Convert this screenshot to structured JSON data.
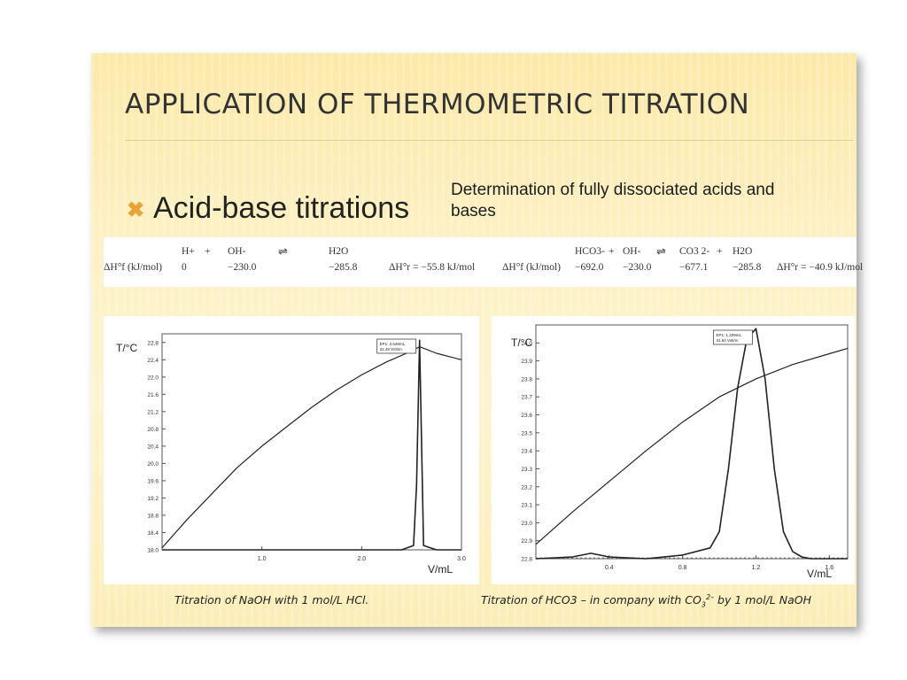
{
  "slide": {
    "title": "APPLICATION OF THERMOMETRIC TITRATION",
    "bullet": "Acid-base titrations",
    "note": "Determination of fully dissociated acids and bases",
    "colors": {
      "bullet_accent": "#e8a33a",
      "background": "#fdf0c2"
    }
  },
  "equations": {
    "eq1": {
      "row_label": "ΔH°f (kJ/mol)",
      "species": [
        "H+",
        "+",
        "OH-",
        "H2O"
      ],
      "values": [
        "0",
        "−230.0",
        "−285.8"
      ],
      "delta": "ΔH°r = −55.8 kJ/mol"
    },
    "eq2": {
      "row_label": "ΔH°f (kJ/mol)",
      "species": [
        "HCO3-",
        "+",
        "OH-",
        "CO3 2-",
        "+",
        "H2O"
      ],
      "values": [
        "−692.0",
        "−230.0",
        "−677.1",
        "−285.8"
      ],
      "delta": "ΔH°r = −40.9 kJ/mol"
    }
  },
  "captions": {
    "left": "Titration of NaOH with 1 mol/L HCl.",
    "right": {
      "part1": "Titration of HCO3 – in company with CO",
      "sub": "3",
      "sup": "2–",
      "part2": " by 1 mol/L NaOH"
    }
  },
  "chart_data": [
    {
      "type": "line",
      "title": "",
      "xlabel": "V/mL",
      "ylabel": "T/°C",
      "xlim": [
        0,
        3.0
      ],
      "ylim": [
        18.0,
        23.0
      ],
      "x_ticks": [
        "1.0",
        "2.0",
        "3.0"
      ],
      "y_ticks": [
        "18.0",
        "18.4",
        "18.8",
        "19.2",
        "19.6",
        "20.0",
        "20.4",
        "20.8",
        "21.2",
        "21.6",
        "22.0",
        "22.4",
        "22.8"
      ],
      "y_tick_values": [
        18.0,
        18.4,
        18.8,
        19.2,
        19.6,
        20.0,
        20.4,
        20.8,
        21.2,
        21.6,
        22.0,
        22.4,
        22.8
      ],
      "x_tick_values": [
        1.0,
        2.0,
        3.0
      ],
      "annotation": [
        "EP1: 2.548mL",
        "22.48 Volt/m"
      ],
      "series": [
        {
          "role": "temperature",
          "x": [
            0,
            0.25,
            0.5,
            0.75,
            1.0,
            1.25,
            1.5,
            1.75,
            2.0,
            2.25,
            2.5,
            2.58,
            2.75,
            3.0
          ],
          "y": [
            18.05,
            18.7,
            19.3,
            19.9,
            20.4,
            20.85,
            21.3,
            21.7,
            22.05,
            22.35,
            22.6,
            22.7,
            22.55,
            22.4
          ]
        },
        {
          "role": "derivative",
          "x": [
            0,
            2.4,
            2.52,
            2.55,
            2.58,
            2.62,
            2.75,
            3.0
          ],
          "y": [
            18.0,
            18.0,
            18.1,
            19.5,
            22.85,
            18.1,
            18.0,
            18.0
          ]
        }
      ]
    },
    {
      "type": "line",
      "title": "",
      "xlabel": "V/mL",
      "ylabel": "T/°C",
      "xlim": [
        0,
        1.7
      ],
      "ylim": [
        22.8,
        24.1
      ],
      "x_ticks": [
        "0.4",
        "0.8",
        "1.2",
        "1.6"
      ],
      "x_tick_values": [
        0.4,
        0.8,
        1.2,
        1.6
      ],
      "y_ticks": [
        "22.8",
        "22.9",
        "23.0",
        "23.1",
        "23.2",
        "23.3",
        "23.4",
        "23.5",
        "23.6",
        "23.7",
        "23.8",
        "23.9",
        "24.0"
      ],
      "y_tick_values": [
        22.8,
        22.9,
        23.0,
        23.1,
        23.2,
        23.3,
        23.4,
        23.5,
        23.6,
        23.7,
        23.8,
        23.9,
        24.0
      ],
      "annotation": [
        "EP1: 1.209mL",
        "31.64 Volt/m"
      ],
      "series": [
        {
          "role": "temperature",
          "x": [
            0,
            0.2,
            0.4,
            0.6,
            0.8,
            1.0,
            1.2,
            1.4,
            1.6,
            1.7
          ],
          "y": [
            22.88,
            23.06,
            23.23,
            23.4,
            23.56,
            23.7,
            23.8,
            23.88,
            23.94,
            23.97
          ]
        },
        {
          "role": "derivative",
          "x": [
            0,
            0.2,
            0.3,
            0.4,
            0.6,
            0.8,
            0.95,
            1.0,
            1.05,
            1.1,
            1.15,
            1.2,
            1.25,
            1.3,
            1.35,
            1.4,
            1.45,
            1.5,
            1.7
          ],
          "y": [
            22.8,
            22.81,
            22.83,
            22.81,
            22.8,
            22.82,
            22.86,
            22.95,
            23.3,
            23.75,
            24.02,
            24.08,
            23.8,
            23.3,
            22.95,
            22.84,
            22.81,
            22.8,
            22.8
          ]
        }
      ]
    }
  ]
}
